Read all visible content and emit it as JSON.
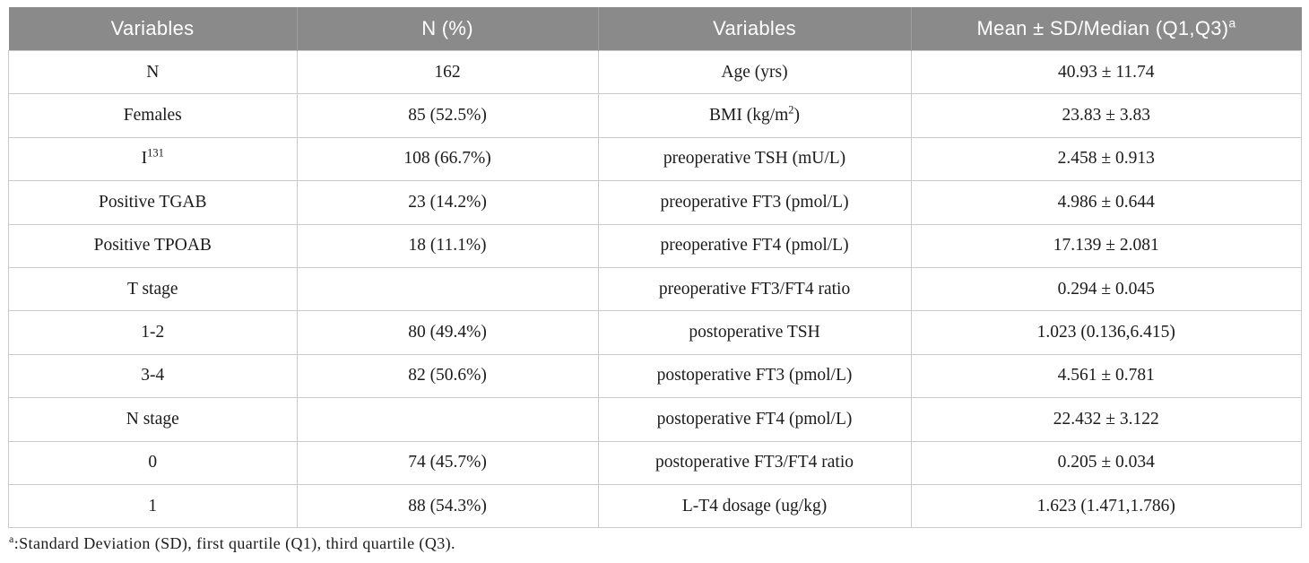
{
  "colors": {
    "header_bg": "#8a8a8a",
    "header_text": "#ffffff",
    "border": "#cacaca",
    "body_text": "#1b1b1b"
  },
  "table": {
    "headers": [
      "Variables",
      "N (%)",
      "Variables",
      "Mean ± SD/Median (Q1,Q3)^{a}"
    ],
    "rows": [
      [
        "N",
        "162",
        "Age (yrs)",
        "40.93 ± 11.74"
      ],
      [
        "Females",
        "85 (52.5%)",
        "BMI (kg/m^{2})",
        "23.83 ± 3.83"
      ],
      [
        "I^{131}",
        "108 (66.7%)",
        "preoperative TSH (mU/L)",
        "2.458 ± 0.913"
      ],
      [
        "Positive TGAB",
        "23 (14.2%)",
        "preoperative FT3 (pmol/L)",
        "4.986 ± 0.644"
      ],
      [
        "Positive TPOAB",
        "18 (11.1%)",
        "preoperative FT4 (pmol/L)",
        "17.139 ± 2.081"
      ],
      [
        "T stage",
        "",
        "preoperative FT3/FT4 ratio",
        "0.294 ± 0.045"
      ],
      [
        "1-2",
        "80 (49.4%)",
        "postoperative TSH",
        "1.023 (0.136,6.415)"
      ],
      [
        "3-4",
        "82 (50.6%)",
        "postoperative FT3 (pmol/L)",
        "4.561 ± 0.781"
      ],
      [
        "N stage",
        "",
        "postoperative FT4 (pmol/L)",
        "22.432 ± 3.122"
      ],
      [
        "0",
        "74 (45.7%)",
        "postoperative FT3/FT4 ratio",
        "0.205 ± 0.034"
      ],
      [
        "1",
        "88 (54.3%)",
        "L-T4 dosage (ug/kg)",
        "1.623 (1.471,1.786)"
      ]
    ],
    "footnote": {
      "marker": "a",
      "text": ":Standard Deviation (SD), first quartile (Q1), third quartile (Q3)."
    }
  }
}
